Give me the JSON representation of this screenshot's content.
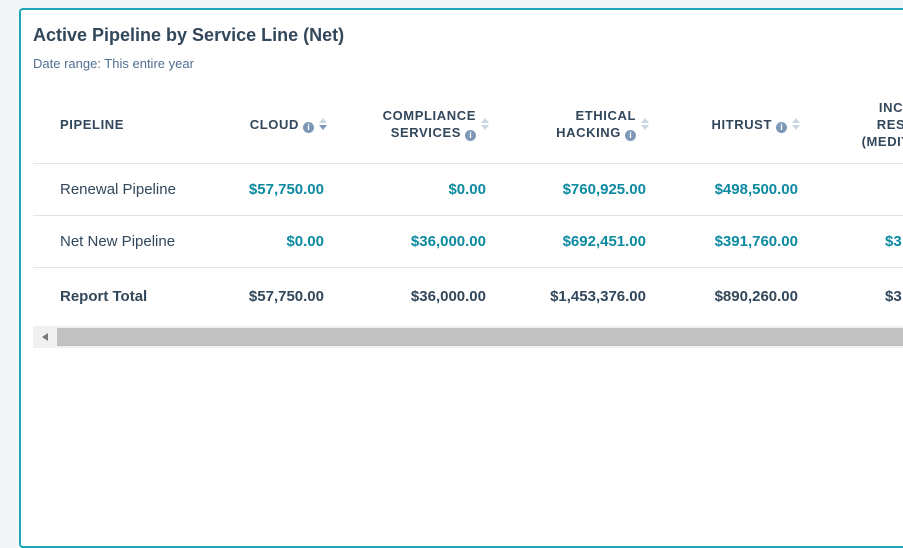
{
  "report": {
    "title": "Active Pipeline by Service Line (Net)",
    "date_range": "Date range: This entire year"
  },
  "columns": [
    {
      "key": "pipeline",
      "line1": "PIPELINE",
      "line2": "",
      "info": false,
      "sort": false
    },
    {
      "key": "cloud",
      "line1": "CLOUD",
      "line2": "",
      "info": true,
      "sort": true,
      "sort_active": "down"
    },
    {
      "key": "compliance",
      "line1": "COMPLIANCE",
      "line2": "SERVICES",
      "info": true,
      "sort": true
    },
    {
      "key": "ethical",
      "line1": "ETHICAL",
      "line2": "HACKING",
      "info": true,
      "sort": true
    },
    {
      "key": "hitrust",
      "line1": "HITRUST",
      "line2": "",
      "info": true,
      "sort": true
    },
    {
      "key": "inc",
      "line1": "INC",
      "line2": "RES",
      "line3": "(MEDITO",
      "info": false,
      "sort": false
    }
  ],
  "rows": [
    {
      "label": "Renewal Pipeline",
      "cloud": "$57,750.00",
      "compliance": "$0.00",
      "ethical": "$760,925.00",
      "hitrust": "$498,500.00",
      "inc": ""
    },
    {
      "label": "Net New Pipeline",
      "cloud": "$0.00",
      "compliance": "$36,000.00",
      "ethical": "$692,451.00",
      "hitrust": "$391,760.00",
      "inc": "$3"
    }
  ],
  "total": {
    "label": "Report Total",
    "cloud": "$57,750.00",
    "compliance": "$36,000.00",
    "ethical": "$1,453,376.00",
    "hitrust": "$890,260.00",
    "inc": "$3"
  },
  "icons": {
    "info": "info-icon",
    "sort": "sort-arrows-icon",
    "scroll_left": "scroll-left-arrow-icon"
  },
  "colors": {
    "accent": "#0b8aa0",
    "border": "#1fa5b8",
    "text": "#33475b"
  }
}
